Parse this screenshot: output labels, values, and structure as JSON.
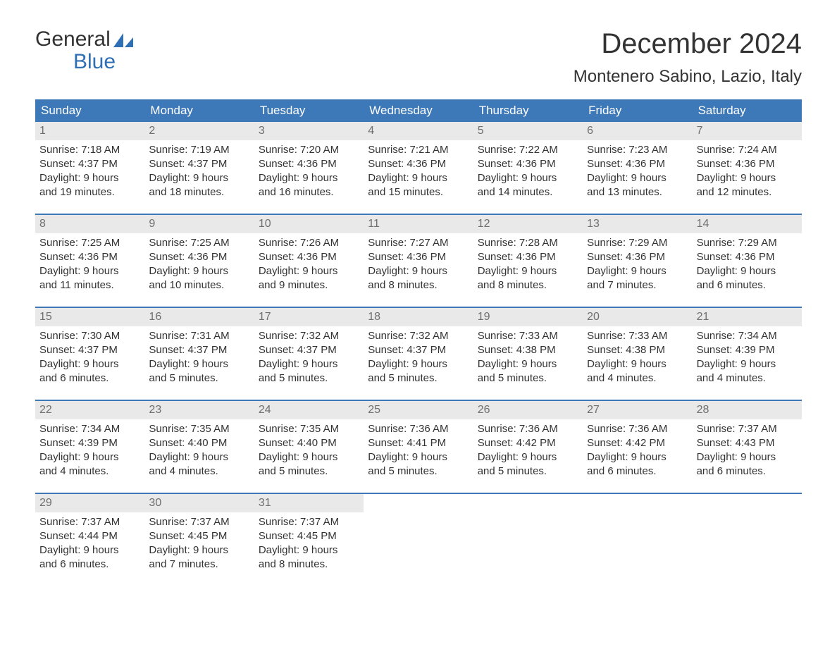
{
  "brand": {
    "line1": "General",
    "line2": "Blue",
    "text_color": "#333333",
    "accent_color": "#2f6fb3"
  },
  "title": "December 2024",
  "location": "Montenero Sabino, Lazio, Italy",
  "colors": {
    "header_bg": "#3d78b8",
    "header_text": "#ffffff",
    "daynum_bg": "#e9e9e9",
    "daynum_text": "#6f6f6f",
    "row_divider": "#3d78b8",
    "body_text": "#333333",
    "page_bg": "#ffffff"
  },
  "typography": {
    "title_fontsize_pt": 30,
    "location_fontsize_pt": 18,
    "dow_fontsize_pt": 13,
    "body_fontsize_pt": 11,
    "font_family": "Arial"
  },
  "layout": {
    "columns": 7,
    "rows": 5,
    "first_day_of_week": "Sunday"
  },
  "days_of_week": [
    "Sunday",
    "Monday",
    "Tuesday",
    "Wednesday",
    "Thursday",
    "Friday",
    "Saturday"
  ],
  "weeks": [
    [
      {
        "n": "1",
        "sunrise": "Sunrise: 7:18 AM",
        "sunset": "Sunset: 4:37 PM",
        "dl1": "Daylight: 9 hours",
        "dl2": "and 19 minutes."
      },
      {
        "n": "2",
        "sunrise": "Sunrise: 7:19 AM",
        "sunset": "Sunset: 4:37 PM",
        "dl1": "Daylight: 9 hours",
        "dl2": "and 18 minutes."
      },
      {
        "n": "3",
        "sunrise": "Sunrise: 7:20 AM",
        "sunset": "Sunset: 4:36 PM",
        "dl1": "Daylight: 9 hours",
        "dl2": "and 16 minutes."
      },
      {
        "n": "4",
        "sunrise": "Sunrise: 7:21 AM",
        "sunset": "Sunset: 4:36 PM",
        "dl1": "Daylight: 9 hours",
        "dl2": "and 15 minutes."
      },
      {
        "n": "5",
        "sunrise": "Sunrise: 7:22 AM",
        "sunset": "Sunset: 4:36 PM",
        "dl1": "Daylight: 9 hours",
        "dl2": "and 14 minutes."
      },
      {
        "n": "6",
        "sunrise": "Sunrise: 7:23 AM",
        "sunset": "Sunset: 4:36 PM",
        "dl1": "Daylight: 9 hours",
        "dl2": "and 13 minutes."
      },
      {
        "n": "7",
        "sunrise": "Sunrise: 7:24 AM",
        "sunset": "Sunset: 4:36 PM",
        "dl1": "Daylight: 9 hours",
        "dl2": "and 12 minutes."
      }
    ],
    [
      {
        "n": "8",
        "sunrise": "Sunrise: 7:25 AM",
        "sunset": "Sunset: 4:36 PM",
        "dl1": "Daylight: 9 hours",
        "dl2": "and 11 minutes."
      },
      {
        "n": "9",
        "sunrise": "Sunrise: 7:25 AM",
        "sunset": "Sunset: 4:36 PM",
        "dl1": "Daylight: 9 hours",
        "dl2": "and 10 minutes."
      },
      {
        "n": "10",
        "sunrise": "Sunrise: 7:26 AM",
        "sunset": "Sunset: 4:36 PM",
        "dl1": "Daylight: 9 hours",
        "dl2": "and 9 minutes."
      },
      {
        "n": "11",
        "sunrise": "Sunrise: 7:27 AM",
        "sunset": "Sunset: 4:36 PM",
        "dl1": "Daylight: 9 hours",
        "dl2": "and 8 minutes."
      },
      {
        "n": "12",
        "sunrise": "Sunrise: 7:28 AM",
        "sunset": "Sunset: 4:36 PM",
        "dl1": "Daylight: 9 hours",
        "dl2": "and 8 minutes."
      },
      {
        "n": "13",
        "sunrise": "Sunrise: 7:29 AM",
        "sunset": "Sunset: 4:36 PM",
        "dl1": "Daylight: 9 hours",
        "dl2": "and 7 minutes."
      },
      {
        "n": "14",
        "sunrise": "Sunrise: 7:29 AM",
        "sunset": "Sunset: 4:36 PM",
        "dl1": "Daylight: 9 hours",
        "dl2": "and 6 minutes."
      }
    ],
    [
      {
        "n": "15",
        "sunrise": "Sunrise: 7:30 AM",
        "sunset": "Sunset: 4:37 PM",
        "dl1": "Daylight: 9 hours",
        "dl2": "and 6 minutes."
      },
      {
        "n": "16",
        "sunrise": "Sunrise: 7:31 AM",
        "sunset": "Sunset: 4:37 PM",
        "dl1": "Daylight: 9 hours",
        "dl2": "and 5 minutes."
      },
      {
        "n": "17",
        "sunrise": "Sunrise: 7:32 AM",
        "sunset": "Sunset: 4:37 PM",
        "dl1": "Daylight: 9 hours",
        "dl2": "and 5 minutes."
      },
      {
        "n": "18",
        "sunrise": "Sunrise: 7:32 AM",
        "sunset": "Sunset: 4:37 PM",
        "dl1": "Daylight: 9 hours",
        "dl2": "and 5 minutes."
      },
      {
        "n": "19",
        "sunrise": "Sunrise: 7:33 AM",
        "sunset": "Sunset: 4:38 PM",
        "dl1": "Daylight: 9 hours",
        "dl2": "and 5 minutes."
      },
      {
        "n": "20",
        "sunrise": "Sunrise: 7:33 AM",
        "sunset": "Sunset: 4:38 PM",
        "dl1": "Daylight: 9 hours",
        "dl2": "and 4 minutes."
      },
      {
        "n": "21",
        "sunrise": "Sunrise: 7:34 AM",
        "sunset": "Sunset: 4:39 PM",
        "dl1": "Daylight: 9 hours",
        "dl2": "and 4 minutes."
      }
    ],
    [
      {
        "n": "22",
        "sunrise": "Sunrise: 7:34 AM",
        "sunset": "Sunset: 4:39 PM",
        "dl1": "Daylight: 9 hours",
        "dl2": "and 4 minutes."
      },
      {
        "n": "23",
        "sunrise": "Sunrise: 7:35 AM",
        "sunset": "Sunset: 4:40 PM",
        "dl1": "Daylight: 9 hours",
        "dl2": "and 4 minutes."
      },
      {
        "n": "24",
        "sunrise": "Sunrise: 7:35 AM",
        "sunset": "Sunset: 4:40 PM",
        "dl1": "Daylight: 9 hours",
        "dl2": "and 5 minutes."
      },
      {
        "n": "25",
        "sunrise": "Sunrise: 7:36 AM",
        "sunset": "Sunset: 4:41 PM",
        "dl1": "Daylight: 9 hours",
        "dl2": "and 5 minutes."
      },
      {
        "n": "26",
        "sunrise": "Sunrise: 7:36 AM",
        "sunset": "Sunset: 4:42 PM",
        "dl1": "Daylight: 9 hours",
        "dl2": "and 5 minutes."
      },
      {
        "n": "27",
        "sunrise": "Sunrise: 7:36 AM",
        "sunset": "Sunset: 4:42 PM",
        "dl1": "Daylight: 9 hours",
        "dl2": "and 6 minutes."
      },
      {
        "n": "28",
        "sunrise": "Sunrise: 7:37 AM",
        "sunset": "Sunset: 4:43 PM",
        "dl1": "Daylight: 9 hours",
        "dl2": "and 6 minutes."
      }
    ],
    [
      {
        "n": "29",
        "sunrise": "Sunrise: 7:37 AM",
        "sunset": "Sunset: 4:44 PM",
        "dl1": "Daylight: 9 hours",
        "dl2": "and 6 minutes."
      },
      {
        "n": "30",
        "sunrise": "Sunrise: 7:37 AM",
        "sunset": "Sunset: 4:45 PM",
        "dl1": "Daylight: 9 hours",
        "dl2": "and 7 minutes."
      },
      {
        "n": "31",
        "sunrise": "Sunrise: 7:37 AM",
        "sunset": "Sunset: 4:45 PM",
        "dl1": "Daylight: 9 hours",
        "dl2": "and 8 minutes."
      },
      {
        "empty": true
      },
      {
        "empty": true
      },
      {
        "empty": true
      },
      {
        "empty": true
      }
    ]
  ]
}
